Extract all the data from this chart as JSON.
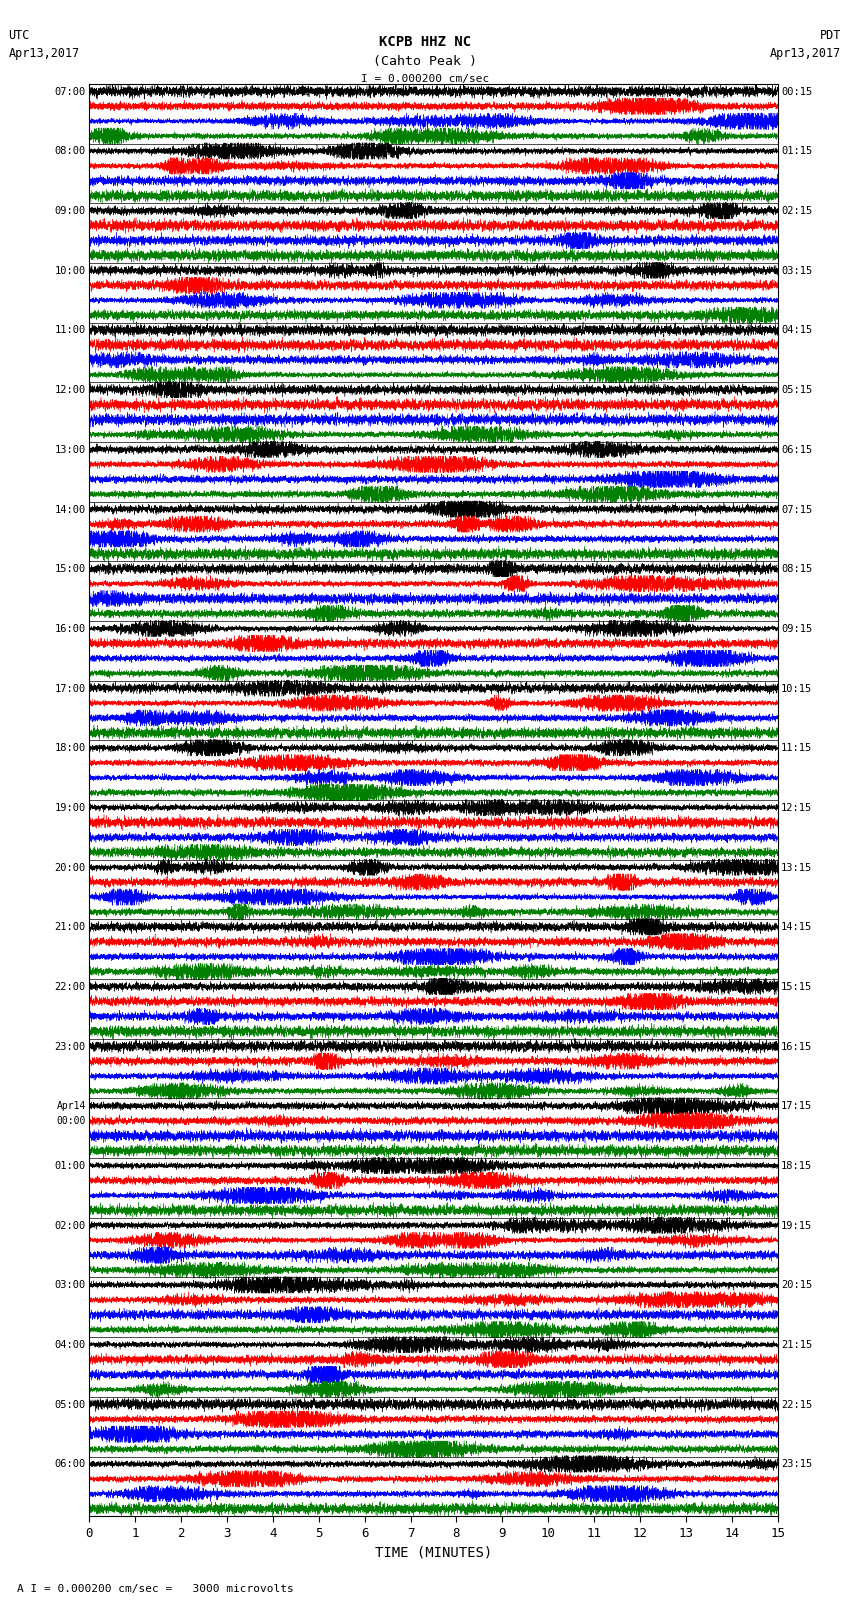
{
  "title_line1": "KCPB HHZ NC",
  "title_line2": "(Cahto Peak )",
  "scale_label": "I = 0.000200 cm/sec",
  "bottom_label": "A I = 0.000200 cm/sec =   3000 microvolts",
  "xlabel": "TIME (MINUTES)",
  "left_times": [
    "07:00",
    "08:00",
    "09:00",
    "10:00",
    "11:00",
    "12:00",
    "13:00",
    "14:00",
    "15:00",
    "16:00",
    "17:00",
    "18:00",
    "19:00",
    "20:00",
    "21:00",
    "22:00",
    "23:00",
    "Apr14\n00:00",
    "01:00",
    "02:00",
    "03:00",
    "04:00",
    "05:00",
    "06:00"
  ],
  "right_times": [
    "00:15",
    "01:15",
    "02:15",
    "03:15",
    "04:15",
    "05:15",
    "06:15",
    "07:15",
    "08:15",
    "09:15",
    "10:15",
    "11:15",
    "12:15",
    "13:15",
    "14:15",
    "15:15",
    "16:15",
    "17:15",
    "18:15",
    "19:15",
    "20:15",
    "21:15",
    "22:15",
    "23:15"
  ],
  "n_rows": 24,
  "n_traces_per_row": 4,
  "colors": [
    "black",
    "red",
    "blue",
    "green"
  ],
  "x_ticks": [
    0,
    1,
    2,
    3,
    4,
    5,
    6,
    7,
    8,
    9,
    10,
    11,
    12,
    13,
    14,
    15
  ],
  "fig_width": 8.5,
  "fig_height": 16.13,
  "dpi": 100,
  "seed": 42
}
